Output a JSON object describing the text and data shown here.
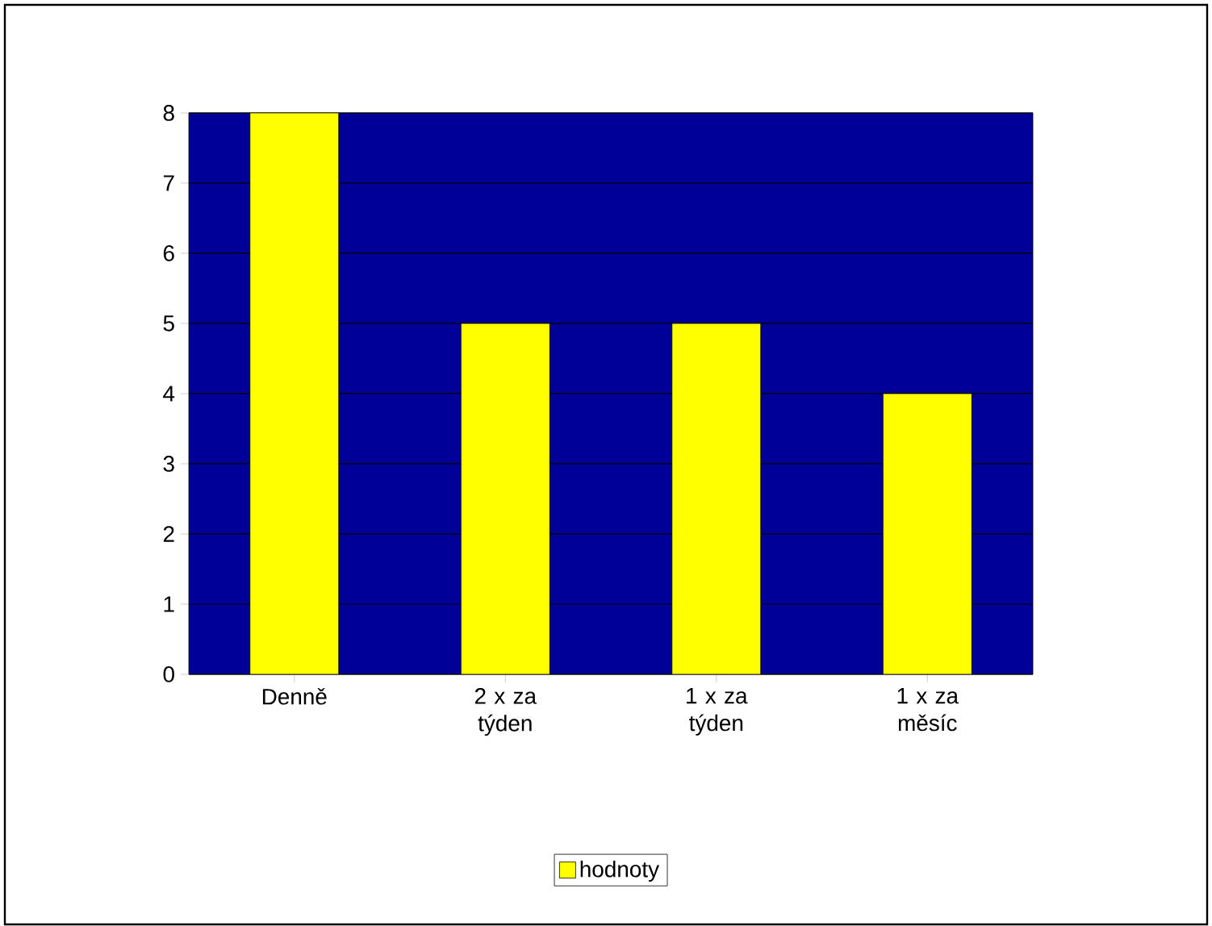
{
  "chart_data": {
    "type": "bar",
    "categories": [
      "Denně",
      "2 x za týden",
      "1 x za týden",
      "1 x za měsíc"
    ],
    "series": [
      {
        "name": "hodnoty",
        "color": "#ffff00",
        "values": [
          8,
          5,
          5,
          4
        ]
      }
    ],
    "ylim": [
      0,
      8
    ],
    "yticks": [
      0,
      1,
      2,
      3,
      4,
      5,
      6,
      7,
      8
    ],
    "grid": "y",
    "legend": "bottom"
  }
}
